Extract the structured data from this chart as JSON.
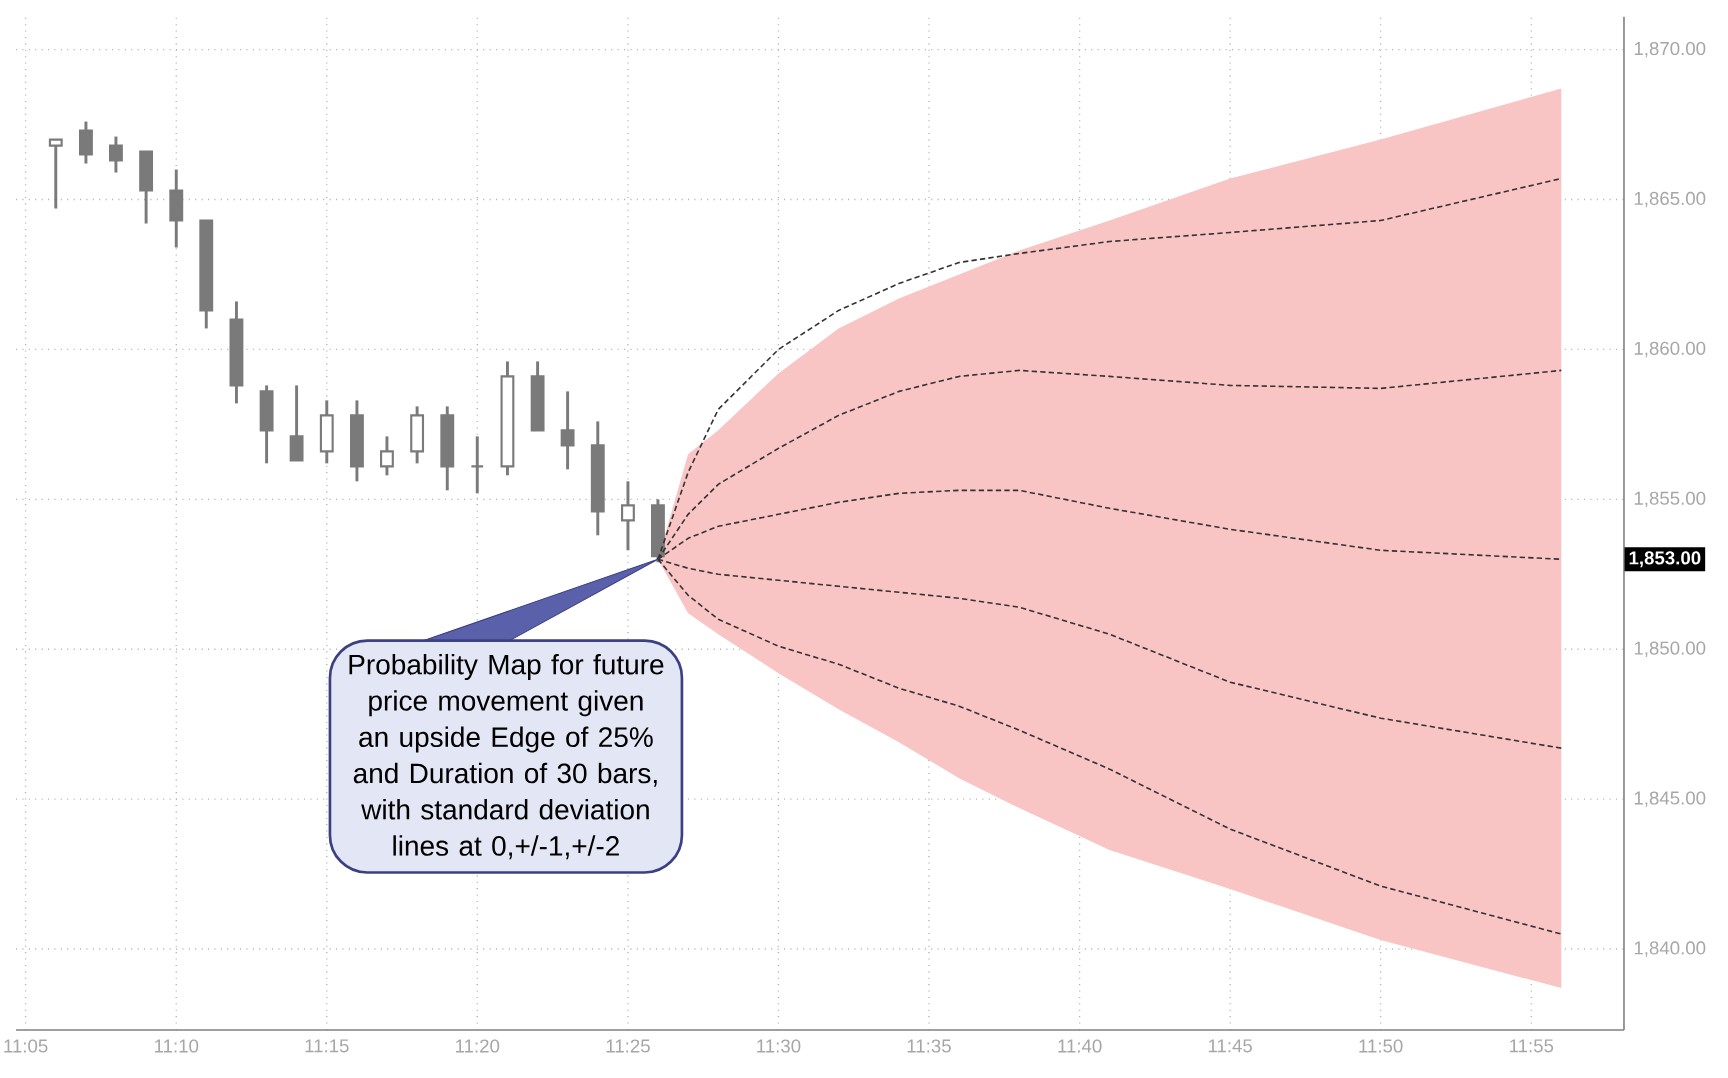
{
  "chart_data": {
    "type": "candlestick",
    "series": [
      {
        "color": "#7a7a7a",
        "x": [
          11.1,
          11.1167,
          11.1333,
          11.15,
          11.1667,
          11.1833,
          11.2,
          11.2167,
          11.2333,
          11.25,
          11.2667,
          11.2833,
          11.3,
          11.3167,
          11.3333,
          11.35,
          11.3667,
          11.3833,
          11.4,
          11.4167,
          11.4333
        ],
        "ohlc": [
          [
            1866.8,
            1867.0,
            1864.7,
            1867.0
          ],
          [
            1867.3,
            1867.6,
            1866.2,
            1866.5
          ],
          [
            1866.8,
            1867.1,
            1865.9,
            1866.3
          ],
          [
            1866.6,
            1866.6,
            1864.2,
            1865.3
          ],
          [
            1865.3,
            1866.0,
            1863.4,
            1864.3
          ],
          [
            1864.3,
            1864.3,
            1860.7,
            1861.3
          ],
          [
            1861.0,
            1861.6,
            1858.2,
            1858.8
          ],
          [
            1858.6,
            1858.8,
            1856.2,
            1857.3
          ],
          [
            1857.1,
            1858.8,
            1856.3,
            1856.3
          ],
          [
            1856.6,
            1858.3,
            1856.2,
            1857.8
          ],
          [
            1857.8,
            1858.3,
            1855.6,
            1856.1
          ],
          [
            1856.1,
            1857.1,
            1855.8,
            1856.6
          ],
          [
            1856.6,
            1858.1,
            1856.2,
            1857.8
          ],
          [
            1857.8,
            1858.1,
            1855.3,
            1856.1
          ],
          [
            1856.1,
            1857.1,
            1855.2,
            1856.1
          ],
          [
            1856.1,
            1859.6,
            1855.8,
            1859.1
          ],
          [
            1859.1,
            1859.6,
            1857.3,
            1857.3
          ],
          [
            1857.3,
            1858.6,
            1856.0,
            1856.8
          ],
          [
            1856.8,
            1857.6,
            1853.8,
            1854.6
          ],
          [
            1854.3,
            1855.6,
            1853.3,
            1854.8
          ],
          [
            1854.8,
            1855.0,
            1852.9,
            1853.1
          ]
        ]
      },
      {
        "type": "line",
        "color": "#333333",
        "x": [
          11.4333,
          11.45,
          11.4667,
          11.5,
          11.5333,
          11.5667,
          11.6,
          11.6333,
          11.6833,
          11.75,
          11.8333,
          11.9333
        ],
        "values": [
          1853.0,
          1855.9,
          1858.0,
          1860.0,
          1861.3,
          1862.2,
          1862.9,
          1863.2,
          1863.6,
          1863.9,
          1864.3,
          1865.7
        ]
      },
      {
        "type": "line",
        "color": "#333333",
        "x": [
          11.4333,
          11.45,
          11.4667,
          11.5,
          11.5333,
          11.5667,
          11.6,
          11.6333,
          11.6833,
          11.75,
          11.8333,
          11.9333
        ],
        "values": [
          1853.0,
          1854.5,
          1855.5,
          1856.7,
          1857.8,
          1858.6,
          1859.1,
          1859.3,
          1859.1,
          1858.8,
          1858.7,
          1859.3
        ]
      },
      {
        "type": "line",
        "color": "#333333",
        "x": [
          11.4333,
          11.45,
          11.4667,
          11.5,
          11.5333,
          11.5667,
          11.6,
          11.6333,
          11.6833,
          11.75,
          11.8333,
          11.9333
        ],
        "values": [
          1853.0,
          1853.7,
          1854.1,
          1854.5,
          1854.9,
          1855.2,
          1855.3,
          1855.3,
          1854.7,
          1854.0,
          1853.3,
          1853.0
        ],
        "lower": [
          1853.0,
          1851.2,
          1850.5,
          1849.2,
          1848.0,
          1846.9,
          1845.7,
          1844.7,
          1843.3,
          1842.0,
          1840.3,
          1838.7
        ],
        "upper": [
          1853.0,
          1856.5,
          1857.3,
          1859.2,
          1860.7,
          1861.7,
          1862.5,
          1863.3,
          1864.3,
          1865.7,
          1867.0,
          1868.7
        ]
      },
      {
        "type": "line",
        "color": "#333333",
        "x": [
          11.4333,
          11.45,
          11.4667,
          11.5,
          11.5333,
          11.5667,
          11.6,
          11.6333,
          11.6833,
          11.75,
          11.8333,
          11.9333
        ],
        "values": [
          1853.0,
          1852.7,
          1852.5,
          1852.3,
          1852.1,
          1851.9,
          1851.7,
          1851.4,
          1850.5,
          1848.9,
          1847.7,
          1846.7
        ]
      },
      {
        "type": "line",
        "color": "#333333",
        "x": [
          11.4333,
          11.45,
          11.4667,
          11.5,
          11.5333,
          11.5667,
          11.6,
          11.6333,
          11.6833,
          11.75,
          11.8333,
          11.9333
        ],
        "values": [
          1853.0,
          1851.8,
          1851.0,
          1850.1,
          1849.5,
          1848.7,
          1848.1,
          1847.3,
          1846.0,
          1844.0,
          1842.1,
          1840.5
        ]
      }
    ],
    "xlim": [
      11.078,
      11.968
    ],
    "ylim": [
      1837.3,
      1871.1
    ],
    "xticks": [
      {
        "value": 11.0833,
        "label": "11:05"
      },
      {
        "value": 11.1667,
        "label": "11:10"
      },
      {
        "value": 11.25,
        "label": "11:15"
      },
      {
        "value": 11.3333,
        "label": "11:20"
      },
      {
        "value": 11.4167,
        "label": "11:25"
      },
      {
        "value": 11.5,
        "label": "11:30"
      },
      {
        "value": 11.5833,
        "label": "11:35"
      },
      {
        "value": 11.6667,
        "label": "11:40"
      },
      {
        "value": 11.75,
        "label": "11:45"
      },
      {
        "value": 11.8333,
        "label": "11:50"
      },
      {
        "value": 11.9167,
        "label": "11:55"
      }
    ],
    "yticks": [
      {
        "value": 1840,
        "label": "1,840.00"
      },
      {
        "value": 1845,
        "label": "1,845.00"
      },
      {
        "value": 1850,
        "label": "1,850.00"
      },
      {
        "value": 1855,
        "label": "1,855.00"
      },
      {
        "value": 1860,
        "label": "1,860.00"
      },
      {
        "value": 1865,
        "label": "1,865.00"
      },
      {
        "value": 1870,
        "label": "1,870.00"
      }
    ],
    "grid": true,
    "line_style": "dashed",
    "annotations": [
      {
        "text": "Probability Map for future price movement given an upside Edge of 25% and Duration of 30 bars, with standard deviation lines at 0,+/-1,+/-2",
        "x": 11.4333,
        "y": 1853.0
      },
      "1,853.00"
    ]
  }
}
